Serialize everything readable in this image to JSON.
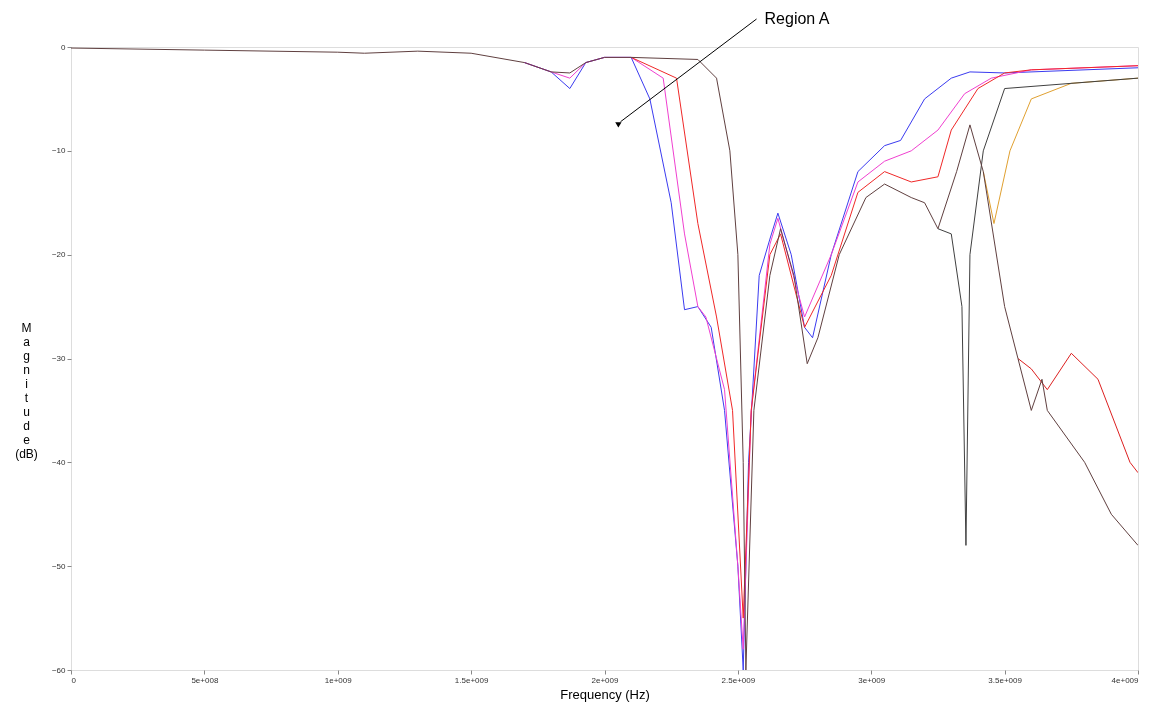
{
  "chart_data": {
    "type": "line",
    "xlabel": "Frequency (Hz)",
    "ylabel": "Magnitude (dB)",
    "xlim": [
      0,
      4000000000
    ],
    "ylim": [
      -60,
      0
    ],
    "xticks": [
      0,
      {
        "value": 500000000,
        "label": "5e+008"
      },
      {
        "value": 1000000000,
        "label": "1e+009"
      },
      {
        "value": 1500000000,
        "label": "1.5e+009"
      },
      {
        "value": 2000000000,
        "label": "2e+009"
      },
      {
        "value": 2500000000,
        "label": "2.5e+009"
      },
      {
        "value": 3000000000,
        "label": "3e+009"
      },
      {
        "value": 3500000000,
        "label": "3.5e+009"
      },
      {
        "value": 4000000000,
        "label": "4e+009"
      }
    ],
    "yticks": [
      0,
      -10,
      -20,
      -30,
      -40,
      -50,
      -60
    ],
    "grid": false,
    "legend": false,
    "line_style": "solid",
    "annotations": [
      "Region A"
    ],
    "series": [
      {
        "color": "#3b3bf0",
        "x": [
          1700000000,
          1800000000,
          1870000000,
          1930000000,
          2000000000,
          2100000000,
          2170000000,
          2250000000,
          2300000000,
          2350000000,
          2400000000,
          2450000000,
          2500000000,
          2520000000,
          2540000000,
          2580000000,
          2620000000,
          2650000000,
          2700000000,
          2750000000,
          2780000000,
          2850000000,
          2950000000,
          3050000000,
          3110000000,
          3200000000,
          3300000000,
          3370000000,
          3500000000,
          4000000000
        ],
        "values": [
          -1.5,
          -2.4,
          -4,
          -1.5,
          -1.0,
          -1.0,
          -5,
          -15,
          -25.3,
          -25,
          -27,
          -35,
          -50,
          -60,
          -40,
          -22,
          -18.5,
          -16,
          -20,
          -27,
          -28,
          -20,
          -12,
          -9.5,
          -9,
          -5,
          -3,
          -2.4,
          -2.5,
          -2
        ]
      },
      {
        "color": "#f040d0",
        "x": [
          1700000000,
          1800000000,
          1870000000,
          1930000000,
          2000000000,
          2100000000,
          2220000000,
          2300000000,
          2350000000,
          2380000000,
          2450000000,
          2500000000,
          2520000000,
          2550000000,
          2620000000,
          2650000000,
          2750000000,
          2850000000,
          2950000000,
          3050000000,
          3150000000,
          3250000000,
          3350000000,
          3450000000,
          3600000000,
          4000000000
        ],
        "values": [
          -1.5,
          -2.4,
          -3,
          -1.5,
          -1.0,
          -1.0,
          -3,
          -18,
          -25,
          -26,
          -33,
          -50,
          -58,
          -35,
          -19,
          -16.5,
          -26,
          -20,
          -13,
          -11,
          -10,
          -8,
          -4.5,
          -3,
          -2.2,
          -1.8
        ]
      },
      {
        "color": "#f02828",
        "x": [
          2100000000,
          2270000000,
          2350000000,
          2420000000,
          2480000000,
          2520000000,
          2550000000,
          2620000000,
          2660000000,
          2750000000,
          2850000000,
          2950000000,
          3050000000,
          3150000000,
          3250000000,
          3300000000,
          3400000000,
          3500000000,
          3600000000,
          4000000000
        ],
        "values": [
          -1.0,
          -3,
          -17,
          -26,
          -35,
          -55,
          -35,
          -20,
          -18,
          -27,
          -22,
          -14,
          -12,
          -13,
          -12.5,
          -8,
          -4,
          -2.5,
          -2.2,
          -1.8
        ]
      },
      {
        "color": "#e0a030",
        "x": [
          3420000000,
          3460000000,
          3520000000,
          3600000000,
          3750000000,
          4000000000
        ],
        "values": [
          -12,
          -17,
          -10,
          -5,
          -3.5,
          -3
        ]
      },
      {
        "color": "#404040",
        "x": [
          3250000000,
          3300000000,
          3340000000,
          3355000000,
          3370000000,
          3420000000,
          3500000000,
          4000000000
        ],
        "values": [
          -17.5,
          -18,
          -25,
          -48,
          -20,
          -10,
          -4,
          -3
        ]
      },
      {
        "color": "#dd2020",
        "x": [
          3550000000,
          3600000000,
          3660000000,
          3750000000,
          3850000000,
          3970000000,
          4000000000
        ],
        "values": [
          -30,
          -31,
          -33,
          -29.5,
          -32,
          -40,
          -41
        ]
      },
      {
        "color": "#604040",
        "x": [
          0,
          500000000,
          1000000000,
          1100000000,
          1300000000,
          1500000000,
          1700000000,
          1800000000,
          1870000000,
          1930000000,
          2000000000,
          2100000000,
          2350000000,
          2420000000,
          2470000000,
          2500000000,
          2520000000,
          2530000000,
          2560000000,
          2620000000,
          2660000000,
          2710000000,
          2760000000,
          2800000000,
          2880000000,
          2980000000,
          3050000000,
          3150000000,
          3200000000,
          3250000000,
          3320000000,
          3370000000,
          3420000000,
          3500000000,
          3550000000,
          3600000000,
          3640000000,
          3660000000,
          3800000000,
          3900000000,
          4000000000
        ],
        "values": [
          -0.1,
          -0.3,
          -0.5,
          -0.6,
          -0.4,
          -0.6,
          -1.5,
          -2.4,
          -2.5,
          -1.5,
          -1.0,
          -1.0,
          -1.2,
          -3,
          -10,
          -20,
          -40,
          -60,
          -35,
          -22,
          -17.5,
          -22,
          -30.5,
          -28,
          -20,
          -14.5,
          -13.2,
          -14.5,
          -15,
          -17.5,
          -12,
          -7.5,
          -12,
          -25,
          -30,
          -35,
          -32,
          -35,
          -40,
          -45,
          -48
        ]
      }
    ]
  }
}
